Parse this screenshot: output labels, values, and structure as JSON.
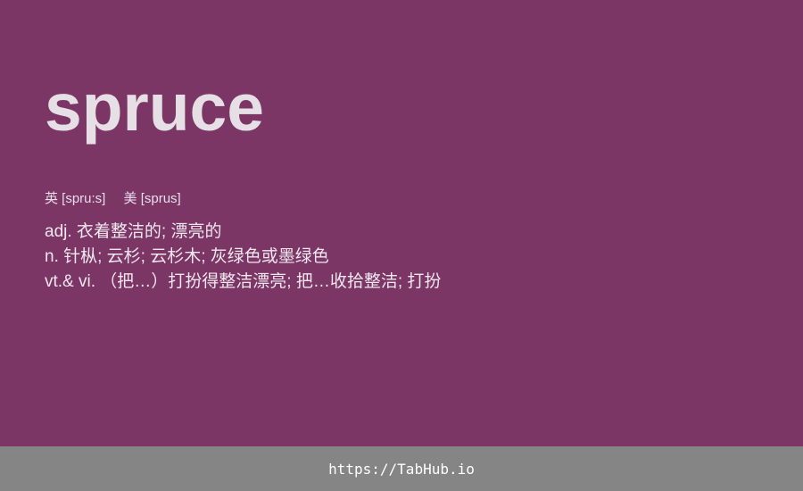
{
  "word": "spruce",
  "phonetics": {
    "uk": "英 [spru:s]",
    "us": "美 [sprus]"
  },
  "definitions": [
    "adj. 衣着整洁的; 漂亮的",
    "n. 针枞; 云杉; 云杉木; 灰绿色或墨绿色",
    "vt.& vi. （把…）打扮得整洁漂亮; 把…收拾整洁; 打扮"
  ],
  "footer": {
    "link": "https://TabHub.io"
  },
  "colors": {
    "background": "#7b3666",
    "footer_bg": "#858585",
    "word_text": "#e6e0e6"
  }
}
